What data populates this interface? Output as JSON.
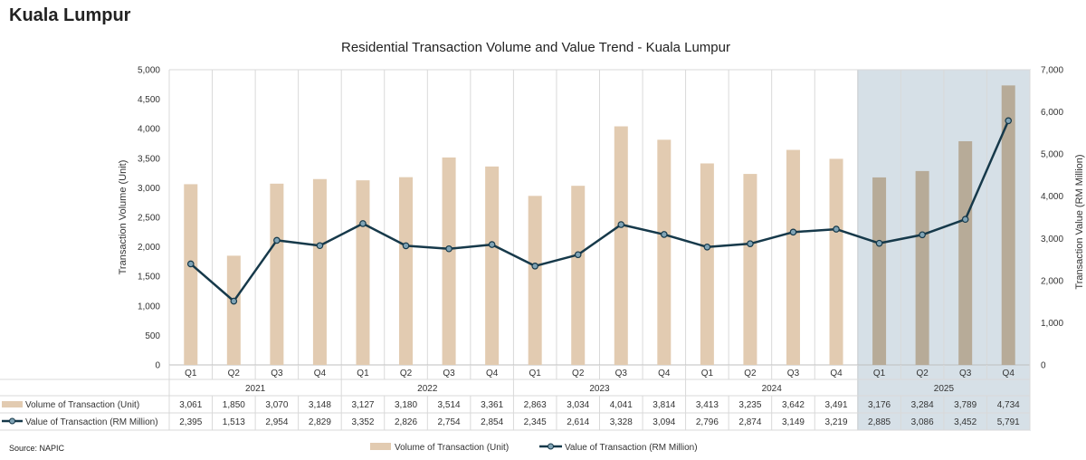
{
  "page": {
    "title": "Kuala Lumpur",
    "source": "Source: NAPIC"
  },
  "colors": {
    "bar": "#e2cbb1",
    "bar_highlight": "#b7ab98",
    "line": "#16394a",
    "highlight_bg": "#d6e0e7",
    "grid": "#d9d9d9"
  },
  "chart_data": {
    "type": "bar",
    "title": "Residential Transaction Volume and Value Trend - Kuala Lumpur",
    "ylabel": "Transaction Volume (Unit)",
    "y2label": "Transaction Value (RM Million)",
    "ylim": [
      0,
      5000
    ],
    "y2lim": [
      0,
      7000
    ],
    "yticks": [
      "5,000",
      "4,500",
      "4,000",
      "3,500",
      "3,000",
      "2,500",
      "2,000",
      "1,500",
      "1,000",
      "500",
      "0"
    ],
    "y2ticks": [
      "7,000",
      "6,000",
      "5,000",
      "4,000",
      "3,000",
      "2,000",
      "1,000",
      "0"
    ],
    "quarters": [
      "Q1",
      "Q2",
      "Q3",
      "Q4",
      "Q1",
      "Q2",
      "Q3",
      "Q4",
      "Q1",
      "Q2",
      "Q3",
      "Q4",
      "Q1",
      "Q2",
      "Q3",
      "Q4",
      "Q1",
      "Q2",
      "Q3",
      "Q4"
    ],
    "years": [
      "2021",
      "2022",
      "2023",
      "2024",
      "2025"
    ],
    "highlight_year": "2025",
    "series": [
      {
        "name": "Volume of Transaction (Unit)",
        "kind": "bar",
        "axis": "left",
        "values": [
          3061,
          1850,
          3070,
          3148,
          3127,
          3180,
          3514,
          3361,
          2863,
          3034,
          4041,
          3814,
          3413,
          3235,
          3642,
          3491,
          3176,
          3284,
          3789,
          4734
        ],
        "labels": [
          "3,061",
          "1,850",
          "3,070",
          "3,148",
          "3,127",
          "3,180",
          "3,514",
          "3,361",
          "2,863",
          "3,034",
          "4,041",
          "3,814",
          "3,413",
          "3,235",
          "3,642",
          "3,491",
          "3,176",
          "3,284",
          "3,789",
          "4,734"
        ]
      },
      {
        "name": "Value of Transaction (RM Million)",
        "kind": "line",
        "axis": "right",
        "values": [
          2395,
          1513,
          2954,
          2829,
          3352,
          2826,
          2754,
          2854,
          2345,
          2614,
          3328,
          3094,
          2796,
          2874,
          3149,
          3219,
          2885,
          3086,
          3452,
          5791
        ],
        "labels": [
          "2,395",
          "1,513",
          "2,954",
          "2,829",
          "3,352",
          "2,826",
          "2,754",
          "2,854",
          "2,345",
          "2,614",
          "3,328",
          "3,094",
          "2,796",
          "2,874",
          "3,149",
          "3,219",
          "2,885",
          "3,086",
          "3,452",
          "5,791"
        ]
      }
    ],
    "legend": [
      "Volume of Transaction (Unit)",
      "Value of Transaction (RM Million)"
    ],
    "legend_position": "bottom"
  }
}
